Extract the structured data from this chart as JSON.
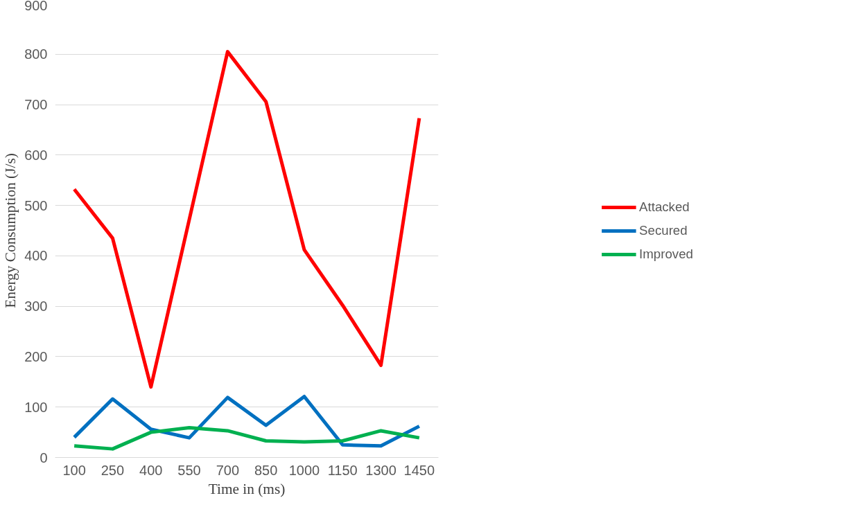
{
  "chart_data": {
    "type": "line",
    "xlabel": "Time in (ms)",
    "ylabel": "Energy Consumption (J/s)",
    "categories": [
      "100",
      "250",
      "400",
      "550",
      "700",
      "850",
      "1000",
      "1150",
      "1300",
      "1450"
    ],
    "series": [
      {
        "name": "Attacked",
        "color": "#ff0000",
        "values": [
          532,
          435,
          140,
          472,
          805,
          706,
          412,
          302,
          183,
          673
        ]
      },
      {
        "name": "Secured",
        "color": "#0070c0",
        "values": [
          40,
          116,
          56,
          39,
          119,
          64,
          121,
          25,
          23,
          62
        ]
      },
      {
        "name": "Improved",
        "color": "#00b050",
        "values": [
          23,
          17,
          50,
          59,
          53,
          33,
          31,
          33,
          53,
          39
        ]
      }
    ],
    "ylim": [
      0,
      900
    ],
    "yticks": [
      0,
      100,
      200,
      300,
      400,
      500,
      600,
      700,
      800,
      900
    ],
    "grid": "y",
    "legend": "right",
    "marker": "none",
    "line_style": "solid"
  }
}
